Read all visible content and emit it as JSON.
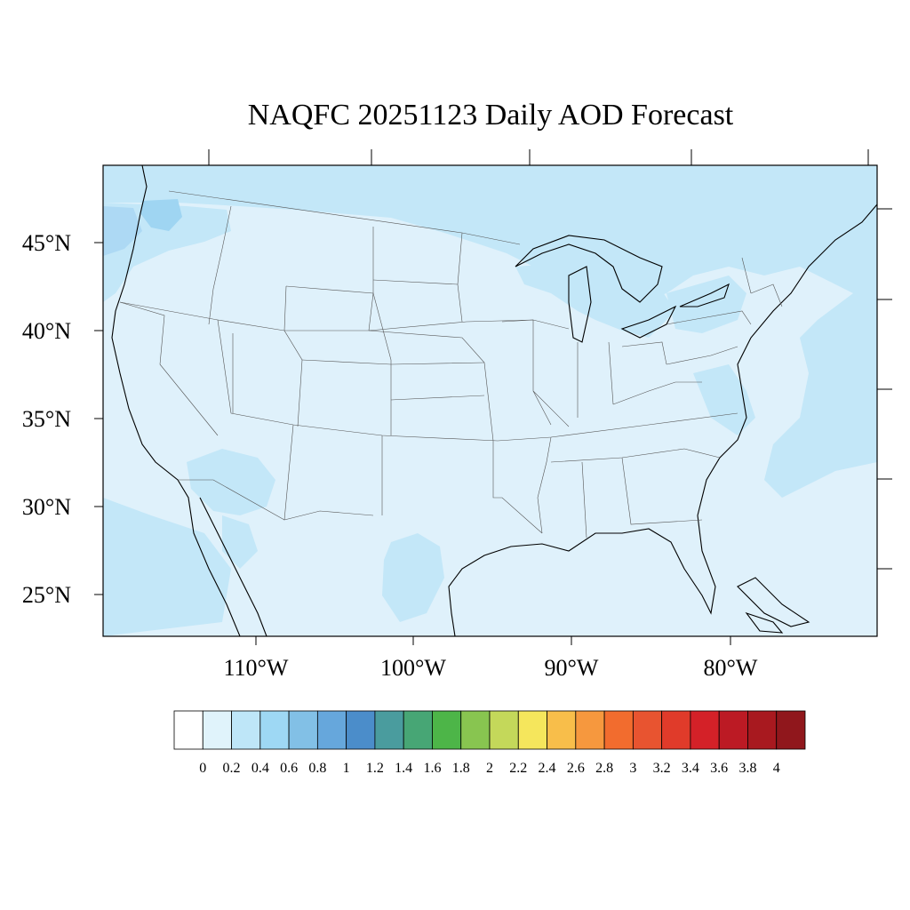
{
  "title": "NAQFC 20251123 Daily AOD Forecast",
  "map": {
    "lat_labels": [
      "45°N",
      "40°N",
      "35°N",
      "30°N",
      "25°N"
    ],
    "lon_labels": [
      "110°W",
      "100°W",
      "90°W",
      "80°W"
    ],
    "background_fill": "#dff1fb",
    "regions": [
      {
        "name": "Pacific Northwest coast",
        "level": "0.4-0.6",
        "color": "#c3e7f8"
      },
      {
        "name": "Puget Sound",
        "level": "0.6-0.8",
        "color": "#9fd5f2"
      },
      {
        "name": "Canada north of border",
        "level": "0.2-0.4",
        "color": "#c3e7f8"
      },
      {
        "name": "Great Lakes",
        "level": "0.2-0.4",
        "color": "#c3e7f8"
      },
      {
        "name": "Atlantic offshore",
        "level": "0.2-0.4",
        "color": "#c3e7f8"
      },
      {
        "name": "Pacific offshore (south)",
        "level": "0.2-0.4",
        "color": "#c3e7f8"
      },
      {
        "name": "Arizona / Sonora",
        "level": "0.2-0.4",
        "color": "#c3e7f8"
      },
      {
        "name": "South Texas",
        "level": "0.2-0.4",
        "color": "#c3e7f8"
      },
      {
        "name": "Chesapeake",
        "level": "0.2-0.4",
        "color": "#c3e7f8"
      }
    ]
  },
  "colorbar": {
    "colors": [
      "#ffffff",
      "#e0f3fb",
      "#bee6f8",
      "#9ed8f4",
      "#82c0e6",
      "#66a7dc",
      "#4b8dca",
      "#4a9c9e",
      "#47a675",
      "#4db548",
      "#88c550",
      "#c4d85a",
      "#f5e65c",
      "#f8be4a",
      "#f6983e",
      "#f26c2e",
      "#e85430",
      "#e03b2a",
      "#d42128",
      "#bc1a24",
      "#a8191f",
      "#90171c"
    ],
    "labels": [
      "0",
      "0.2",
      "0.4",
      "0.6",
      "0.8",
      "1",
      "1.2",
      "1.4",
      "1.6",
      "1.8",
      "2",
      "2.2",
      "2.4",
      "2.6",
      "2.8",
      "3",
      "3.2",
      "3.4",
      "3.6",
      "3.8",
      "4"
    ]
  }
}
